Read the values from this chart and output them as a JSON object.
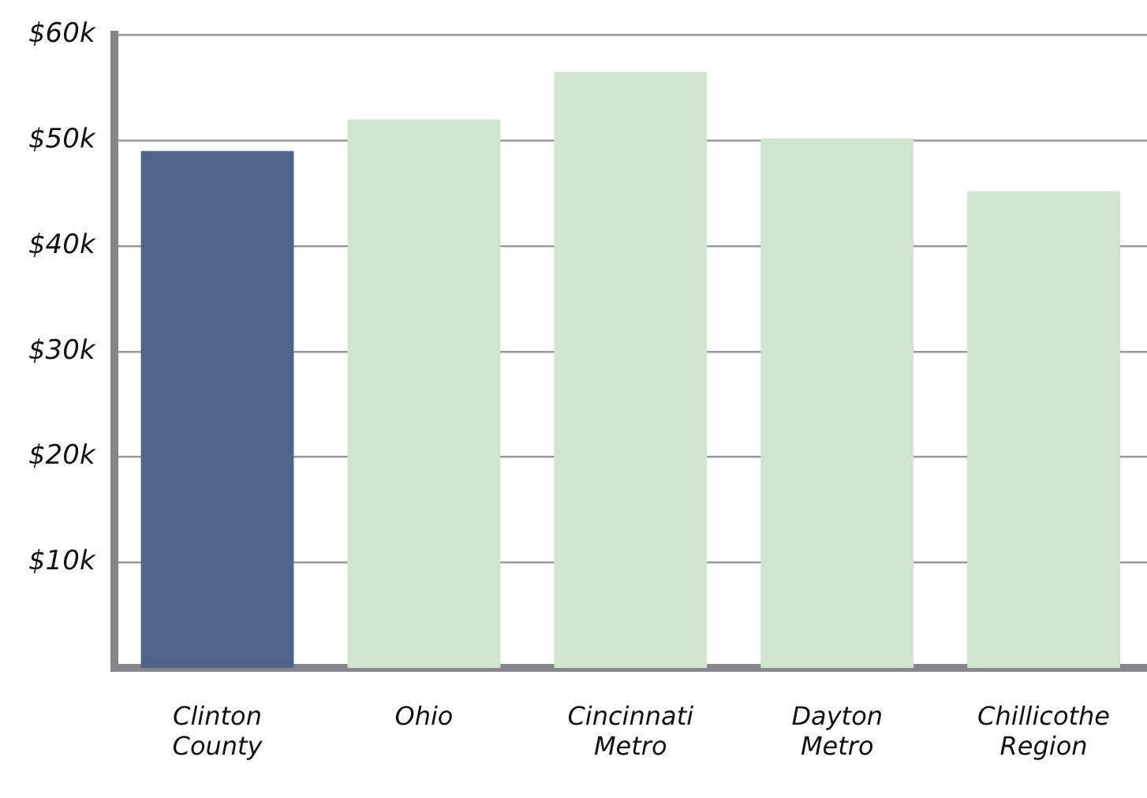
{
  "chart_data": {
    "type": "bar",
    "categories": [
      "Clinton County",
      "Ohio",
      "Cincinnati Metro",
      "Dayton Metro",
      "Chillicothe Region"
    ],
    "values": [
      49,
      52,
      56.5,
      50.2,
      45.2
    ],
    "colors": [
      "#4f638b",
      "#d1e4cf",
      "#d1e4cf",
      "#d1e4cf",
      "#d1e4cf"
    ],
    "ylim": [
      0,
      60
    ],
    "yticks": [
      {
        "value": 10,
        "label": "$10k"
      },
      {
        "value": 20,
        "label": "$20k"
      },
      {
        "value": 30,
        "label": "$30k"
      },
      {
        "value": 40,
        "label": "$40k"
      },
      {
        "value": 50,
        "label": "$50k"
      },
      {
        "value": 60,
        "label": "$60k"
      }
    ],
    "grid": "y",
    "legend": false
  }
}
